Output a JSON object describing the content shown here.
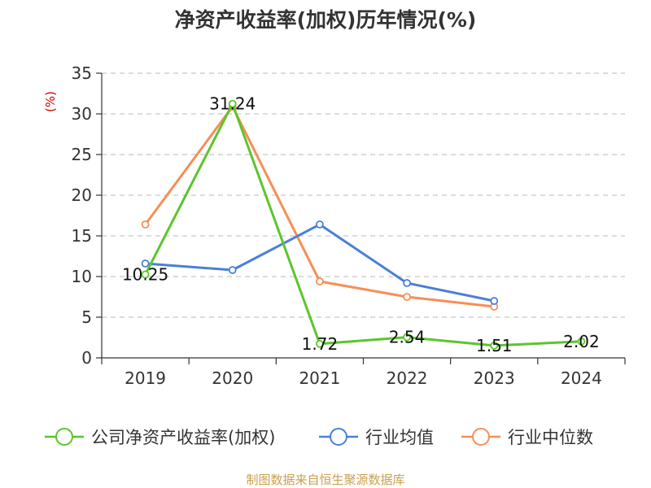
{
  "chart_data": {
    "type": "line",
    "title": "净资产收益率(加权)历年情况(%)",
    "ylabel": "(%)",
    "xlabel": "",
    "categories": [
      "2019",
      "2020",
      "2021",
      "2022",
      "2023",
      "2024"
    ],
    "ylim": [
      0,
      35
    ],
    "yticks": [
      0,
      5,
      10,
      15,
      20,
      25,
      30,
      35
    ],
    "grid": true,
    "legend_position": "bottom",
    "series": [
      {
        "name": "公司净资产收益率(加权)",
        "color": "#5cc52d",
        "values": [
          10.25,
          31.24,
          1.72,
          2.54,
          1.51,
          2.02
        ],
        "labels": [
          "10.25",
          "31.24",
          "1.72",
          "2.54",
          "1.51",
          "2.02"
        ]
      },
      {
        "name": "行业均值",
        "color": "#4a7fd8",
        "values": [
          11.6,
          10.8,
          16.4,
          9.2,
          7.0,
          null
        ]
      },
      {
        "name": "行业中位数",
        "color": "#f58f55",
        "values": [
          16.4,
          30.9,
          9.4,
          7.5,
          6.3,
          null
        ]
      }
    ]
  },
  "source": "制图数据来自恒生聚源数据库"
}
